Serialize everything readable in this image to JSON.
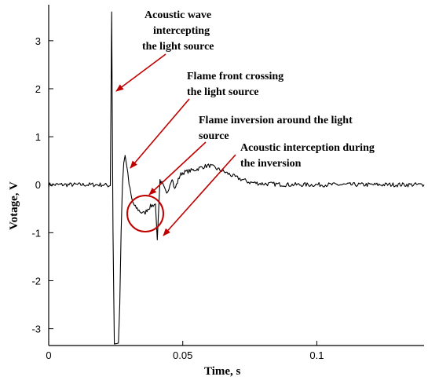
{
  "chart_data": {
    "type": "line",
    "title": "",
    "xlabel": "Time, s",
    "ylabel": "Votage, V",
    "xlim": [
      0,
      0.14
    ],
    "ylim": [
      -3.35,
      3.75
    ],
    "x_ticks": [
      {
        "value": 0,
        "label": "0"
      },
      {
        "value": 0.05,
        "label": "0.05"
      },
      {
        "value": 0.1,
        "label": "0.1"
      }
    ],
    "y_ticks": [
      {
        "value": 3,
        "label": "3"
      },
      {
        "value": 2,
        "label": "2"
      },
      {
        "value": 1,
        "label": "1"
      },
      {
        "value": 0,
        "label": "0"
      },
      {
        "value": -1,
        "label": "-1"
      },
      {
        "value": -2,
        "label": "-2"
      },
      {
        "value": -3,
        "label": "-3"
      }
    ],
    "grid": false,
    "legend": "none",
    "series": [
      {
        "x": [
          0.0,
          0.01,
          0.02,
          0.023,
          0.0235,
          0.024,
          0.0245,
          0.025,
          0.0255,
          0.026,
          0.0265,
          0.027,
          0.0275,
          0.028,
          0.0285,
          0.029,
          0.03,
          0.031,
          0.032,
          0.033,
          0.034,
          0.035,
          0.036,
          0.037,
          0.038,
          0.039,
          0.0398,
          0.0405,
          0.0415,
          0.0425,
          0.044,
          0.046,
          0.047,
          0.048,
          0.049,
          0.05,
          0.052,
          0.055,
          0.058,
          0.06,
          0.062,
          0.065,
          0.07,
          0.075,
          0.08,
          0.09,
          0.1,
          0.11,
          0.12,
          0.13,
          0.14
        ],
        "y": [
          0.0,
          0.0,
          0.0,
          -0.02,
          3.6,
          -1.0,
          -3.3,
          -3.3,
          -3.3,
          -3.3,
          -2.5,
          -1.0,
          0.0,
          0.45,
          0.6,
          0.45,
          0.0,
          -0.3,
          -0.45,
          -0.5,
          -0.55,
          -0.6,
          -0.58,
          -0.5,
          -0.45,
          -0.42,
          -0.4,
          -1.15,
          0.1,
          0.0,
          -0.2,
          0.15,
          -0.1,
          0.05,
          0.2,
          0.25,
          0.28,
          0.32,
          0.38,
          0.4,
          0.35,
          0.28,
          0.15,
          0.05,
          0.02,
          0.0,
          0.0,
          0.0,
          0.0,
          0.0,
          0.0
        ]
      }
    ],
    "annotations": [
      {
        "lines": [
          "Acoustic wave",
          "intercepting",
          "the light source"
        ]
      },
      {
        "lines": [
          "Flame front crossing",
          "the light source"
        ]
      },
      {
        "lines": [
          "Flame inversion around the light",
          "source"
        ]
      },
      {
        "lines": [
          "Acoustic interception during",
          "the inversion"
        ]
      }
    ],
    "colors": {
      "signal": "#000000",
      "arrows": "#c00000",
      "highlight-circle": "#c00000"
    }
  }
}
